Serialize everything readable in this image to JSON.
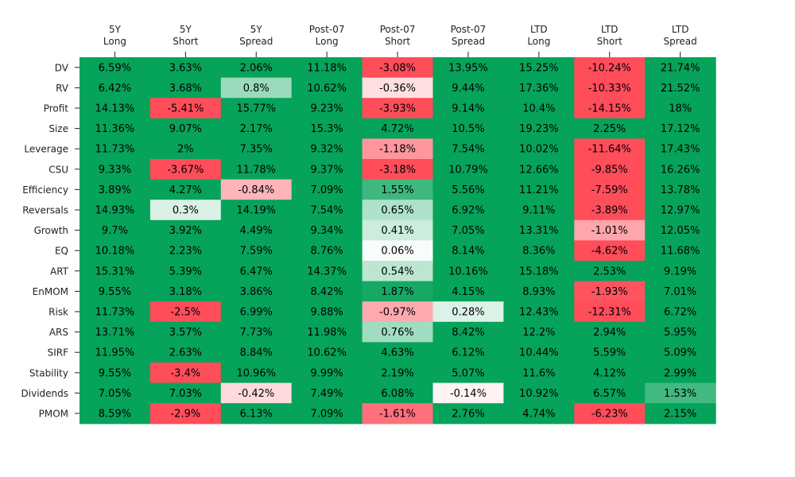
{
  "chart_data": {
    "type": "heatmap",
    "columns": [
      [
        "5Y",
        "Long"
      ],
      [
        "5Y",
        "Short"
      ],
      [
        "5Y",
        "Spread"
      ],
      [
        "Post-07",
        "Long"
      ],
      [
        "Post-07",
        "Short"
      ],
      [
        "Post-07",
        "Spread"
      ],
      [
        "LTD",
        "Long"
      ],
      [
        "LTD",
        "Short"
      ],
      [
        "LTD",
        "Spread"
      ]
    ],
    "rows": [
      "DV",
      "RV",
      "Profit",
      "Size",
      "Leverage",
      "CSU",
      "Efficiency",
      "Reversals",
      "Growth",
      "EQ",
      "ART",
      "EnMOM",
      "Risk",
      "ARS",
      "SIRF",
      "Stability",
      "Dividends",
      "PMOM"
    ],
    "values": [
      [
        6.59,
        3.63,
        2.06,
        11.18,
        -3.08,
        13.95,
        15.25,
        -10.24,
        21.74
      ],
      [
        6.42,
        3.68,
        0.8,
        10.62,
        -0.36,
        9.44,
        17.36,
        -10.33,
        21.52
      ],
      [
        14.13,
        -5.41,
        15.77,
        9.23,
        -3.93,
        9.14,
        10.4,
        -14.15,
        18.0
      ],
      [
        11.36,
        9.07,
        2.17,
        15.3,
        4.72,
        10.5,
        19.23,
        2.25,
        17.12
      ],
      [
        11.73,
        2.0,
        7.35,
        9.32,
        -1.18,
        7.54,
        10.02,
        -11.64,
        17.43
      ],
      [
        9.33,
        -3.67,
        11.78,
        9.37,
        -3.18,
        10.79,
        12.66,
        -9.85,
        16.26
      ],
      [
        3.89,
        4.27,
        -0.84,
        7.09,
        1.55,
        5.56,
        11.21,
        -7.59,
        13.78
      ],
      [
        14.93,
        0.3,
        14.19,
        7.54,
        0.65,
        6.92,
        9.11,
        -3.89,
        12.97
      ],
      [
        9.7,
        3.92,
        4.49,
        9.34,
        0.41,
        7.05,
        13.31,
        -1.01,
        12.05
      ],
      [
        10.18,
        2.23,
        7.59,
        8.76,
        0.06,
        8.14,
        8.36,
        -4.62,
        11.68
      ],
      [
        15.31,
        5.39,
        6.47,
        14.37,
        0.54,
        10.16,
        15.18,
        2.53,
        9.19
      ],
      [
        9.55,
        3.18,
        3.86,
        8.42,
        1.87,
        4.15,
        8.93,
        -1.93,
        7.01
      ],
      [
        11.73,
        -2.5,
        6.99,
        9.88,
        -0.97,
        0.28,
        12.43,
        -12.31,
        6.72
      ],
      [
        13.71,
        3.57,
        7.73,
        11.98,
        0.76,
        8.42,
        12.2,
        2.94,
        5.95
      ],
      [
        11.95,
        2.63,
        8.84,
        10.62,
        4.63,
        6.12,
        10.44,
        5.59,
        5.09
      ],
      [
        9.55,
        -3.4,
        10.96,
        9.99,
        2.19,
        5.07,
        11.6,
        4.12,
        2.99
      ],
      [
        7.05,
        7.03,
        -0.42,
        7.49,
        6.08,
        -0.14,
        10.92,
        6.57,
        1.53
      ],
      [
        8.59,
        -2.9,
        6.13,
        7.09,
        -1.61,
        2.76,
        4.74,
        -6.23,
        2.15
      ]
    ],
    "value_suffix": "%",
    "colormap": {
      "negative": "#ff4d5a",
      "neutral": "#ffffff",
      "positive": "#06a35a",
      "saturation_threshold": 2.0
    }
  }
}
